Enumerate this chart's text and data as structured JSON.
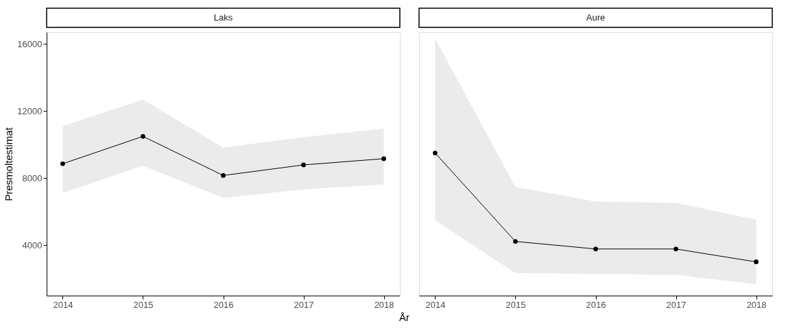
{
  "chart_data": [
    {
      "type": "line",
      "title": "Laks",
      "xlabel": "År",
      "ylabel": "Presmoltestimat",
      "x": [
        2014,
        2015,
        2016,
        2017,
        2018
      ],
      "series": [
        {
          "color": "#000000",
          "values": [
            8860,
            10490,
            8160,
            8790,
            9160
          ],
          "lower": [
            7120,
            8740,
            6820,
            7330,
            7630
          ],
          "upper": [
            11100,
            12680,
            9820,
            10440,
            10960
          ]
        }
      ],
      "xlim": [
        2013.8,
        2018.2
      ],
      "xticks": [
        2014,
        2015,
        2016,
        2017,
        2018
      ],
      "ylim": [
        1000,
        16700
      ],
      "yticks": [
        4000,
        8000,
        12000,
        16000
      ],
      "marker": "circle",
      "grid": false
    },
    {
      "type": "line",
      "title": "Aure",
      "x": [
        2014,
        2015,
        2016,
        2017,
        2018
      ],
      "series": [
        {
          "color": "#000000",
          "values": [
            9500,
            4230,
            3780,
            3780,
            3010
          ],
          "lower": [
            5500,
            2350,
            2280,
            2240,
            1680
          ],
          "upper": [
            16320,
            7480,
            6610,
            6530,
            5530
          ]
        }
      ],
      "xlim": [
        2013.8,
        2018.2
      ],
      "xticks": [
        2014,
        2015,
        2016,
        2017,
        2018
      ],
      "ylim": [
        1000,
        16700
      ],
      "marker": "circle",
      "grid": false,
      "tick_labels": "x"
    }
  ]
}
